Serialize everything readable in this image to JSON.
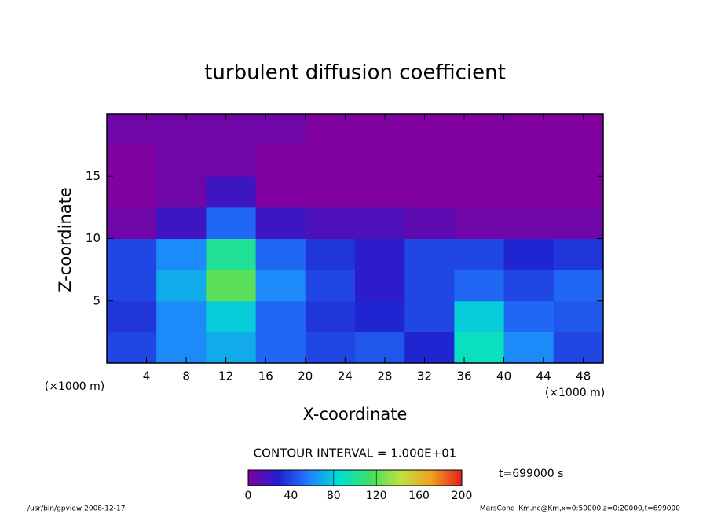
{
  "chart_data": {
    "type": "contour",
    "title": "turbulent diffusion coefficient",
    "xlabel": "X-coordinate",
    "ylabel": "Z-coordinate",
    "xunit": "(×1000 m)",
    "yunit": "(×1000 m)",
    "xlim": [
      0,
      50
    ],
    "ylim": [
      0,
      20
    ],
    "xticks": [
      4,
      8,
      12,
      16,
      20,
      24,
      28,
      32,
      36,
      40,
      44,
      48
    ],
    "yticks": [
      5,
      10,
      15
    ],
    "x": [
      2.5,
      7.5,
      12.5,
      17.5,
      22.5,
      27.5,
      32.5,
      37.5,
      42.5,
      47.5
    ],
    "y": [
      1.25,
      3.75,
      6.25,
      8.75,
      11.25,
      13.75,
      16.25,
      18.75
    ],
    "z": [
      [
        40,
        60,
        70,
        50,
        40,
        45,
        30,
        90,
        60,
        40
      ],
      [
        35,
        60,
        80,
        50,
        35,
        30,
        40,
        80,
        50,
        45
      ],
      [
        40,
        70,
        120,
        60,
        40,
        25,
        40,
        50,
        40,
        50
      ],
      [
        40,
        60,
        100,
        50,
        35,
        25,
        40,
        40,
        30,
        35
      ],
      [
        5,
        20,
        50,
        20,
        15,
        15,
        10,
        5,
        5,
        5
      ],
      [
        0,
        5,
        20,
        0,
        0,
        0,
        0,
        0,
        0,
        0
      ],
      [
        0,
        5,
        5,
        0,
        0,
        0,
        0,
        0,
        0,
        0
      ],
      [
        5,
        5,
        5,
        5,
        0,
        0,
        0,
        0,
        0,
        0
      ]
    ],
    "clim": [
      0,
      200
    ],
    "colormap": [
      "#8000a0",
      "#2020d0",
      "#2080ff",
      "#00e0d0",
      "#40e060",
      "#c0e040",
      "#f0a020",
      "#e02020"
    ],
    "colorbar_ticks": [
      0,
      40,
      80,
      120,
      160,
      200
    ],
    "contour_interval": "CONTOUR INTERVAL = 1.000E+01",
    "time_label": "t=699000 s",
    "footer_left": "/usr/bin/gpview  2008-12-17",
    "footer_right": "MarsCond_Km.nc@Km,x=0:50000,z=0:20000,t=699000"
  }
}
